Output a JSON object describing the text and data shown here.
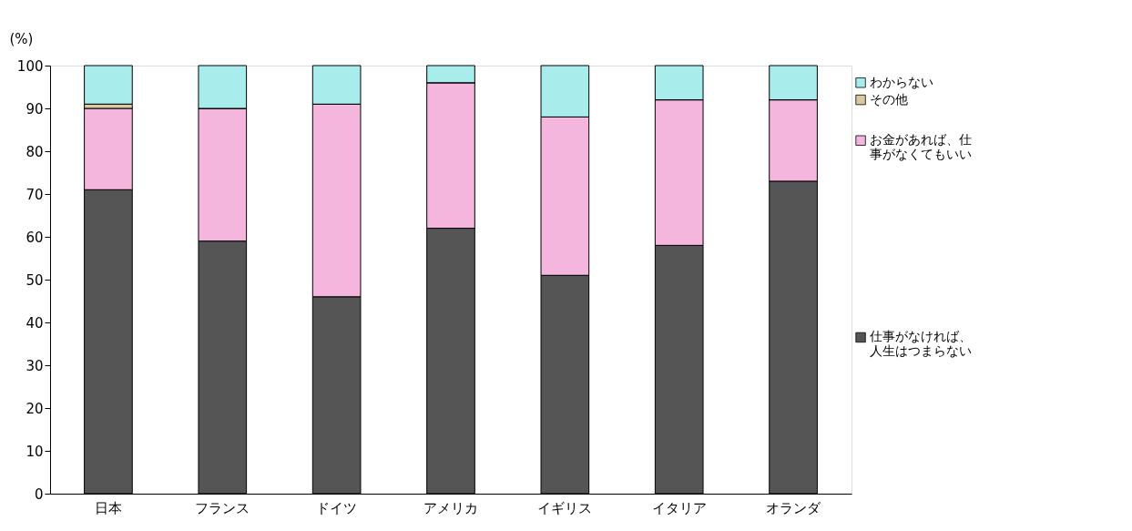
{
  "chart_data": {
    "type": "bar",
    "stacked": true,
    "ylabel": "(%)",
    "categories": [
      "日本",
      "フランス",
      "ドイツ",
      "アメリカ",
      "イギリス",
      "イタリア",
      "オランダ"
    ],
    "series": [
      {
        "name": "仕事がなければ、人生はつまらない",
        "color": "#555555",
        "values": [
          71,
          59,
          46,
          62,
          51,
          58,
          73
        ]
      },
      {
        "name": "お金があれば、仕事がなくてもいい",
        "color": "#f4b6dc",
        "values": [
          19,
          31,
          45,
          34,
          37,
          34,
          19
        ]
      },
      {
        "name": "その他",
        "color": "#d9c9a0",
        "values": [
          1,
          0,
          0,
          0,
          0,
          0,
          0
        ]
      },
      {
        "name": "わからない",
        "color": "#a8ecec",
        "values": [
          9,
          10,
          9,
          4,
          12,
          8,
          8
        ]
      }
    ],
    "ylim": [
      0,
      100
    ],
    "yticks": [
      0,
      10,
      20,
      30,
      40,
      50,
      60,
      70,
      80,
      90,
      100
    ],
    "grid": false,
    "legend": "right"
  }
}
